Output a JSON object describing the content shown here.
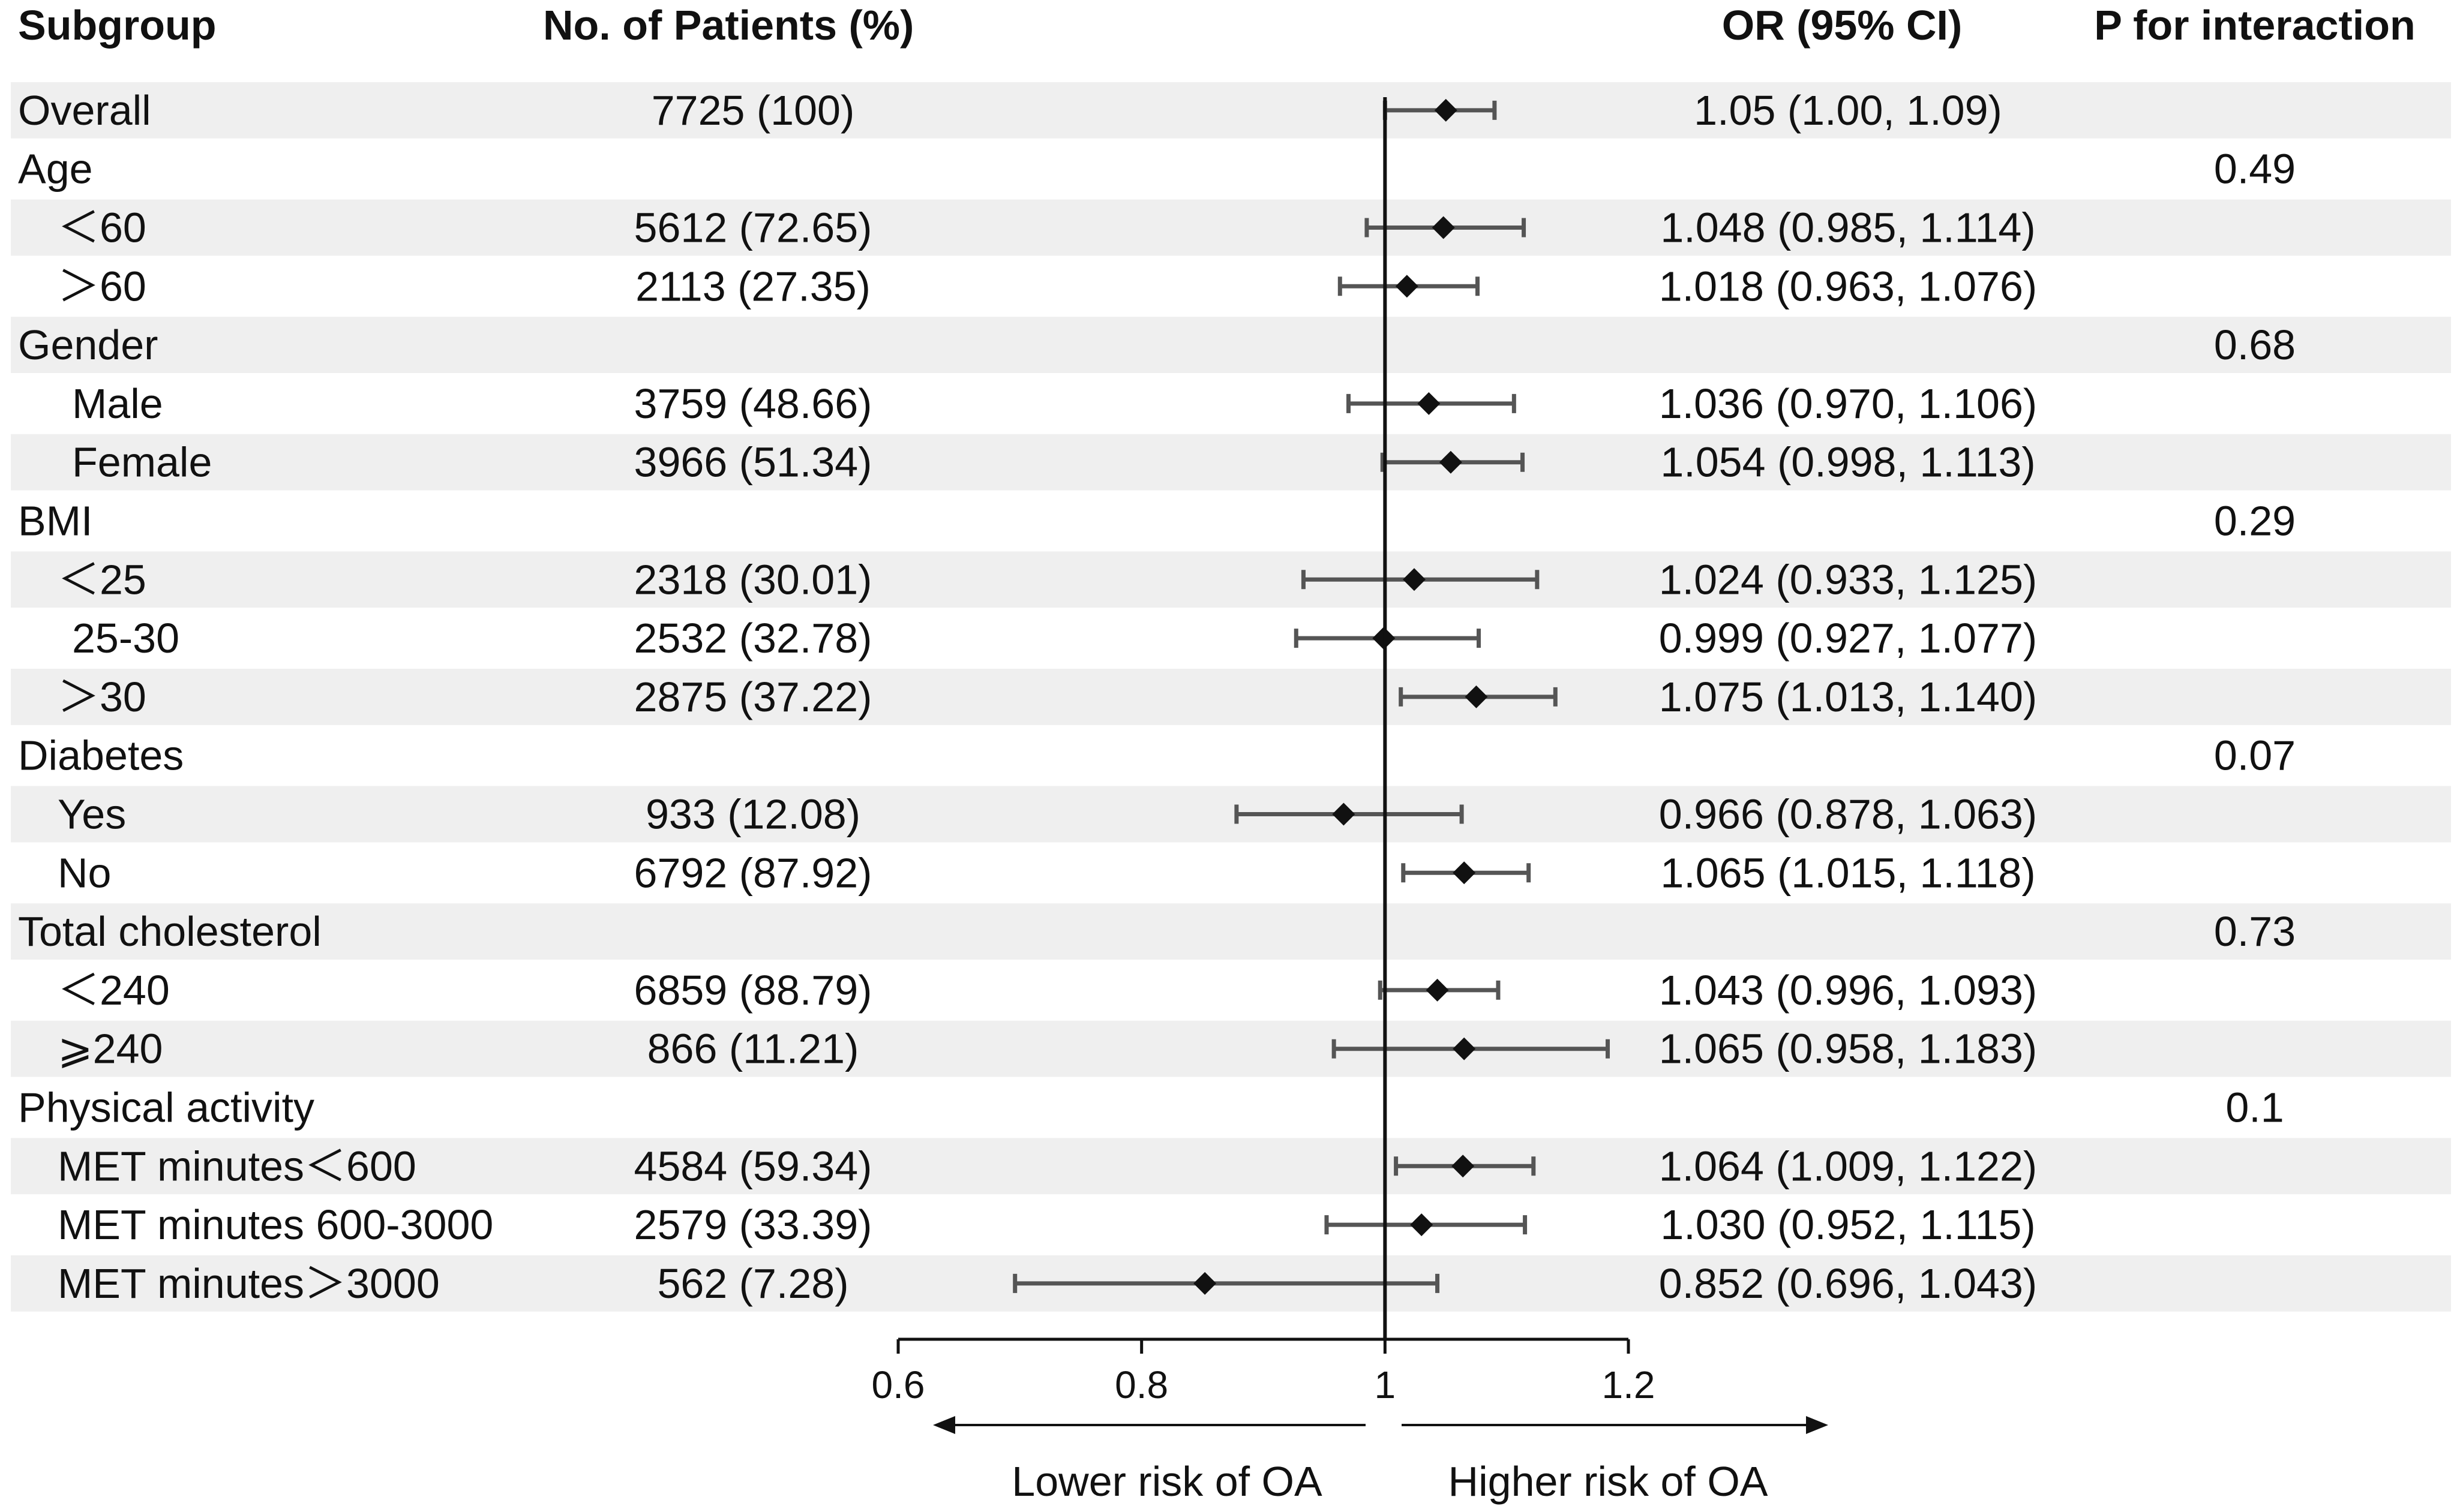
{
  "chart_data": {
    "type": "forest",
    "title": "",
    "columns": {
      "subgroup": "Subgroup",
      "patients": "No. of Patients (%)",
      "or_ci": "OR (95% CI)",
      "p_interaction": "P for interaction"
    },
    "xaxis": {
      "ticks": [
        0.6,
        0.8,
        1,
        1.2
      ],
      "tick_labels": [
        "0.6",
        "0.8",
        "1",
        "1.2"
      ],
      "range": [
        0.6,
        1.2
      ],
      "reference": 1,
      "left_label": "Lower risk of OA",
      "right_label": "Higher risk of OA"
    },
    "rows": [
      {
        "label": "Overall",
        "level": 0,
        "patients": "7725 (100)",
        "or": 1.05,
        "lo": 1.0,
        "hi": 1.09,
        "or_text": "1.05 (1.00, 1.09)",
        "p": "",
        "shaded": true
      },
      {
        "label": "Age",
        "level": 0,
        "patients": "",
        "or": null,
        "lo": null,
        "hi": null,
        "or_text": "",
        "p": "0.49",
        "shaded": false
      },
      {
        "label": "＜60",
        "level": 1,
        "patients": "5612 (72.65)",
        "or": 1.048,
        "lo": 0.985,
        "hi": 1.114,
        "or_text": "1.048 (0.985, 1.114)",
        "p": "",
        "shaded": true
      },
      {
        "label": "＞60",
        "level": 1,
        "patients": "2113 (27.35)",
        "or": 1.018,
        "lo": 0.963,
        "hi": 1.076,
        "or_text": "1.018 (0.963, 1.076)",
        "p": "",
        "shaded": false
      },
      {
        "label": "Gender",
        "level": 0,
        "patients": "",
        "or": null,
        "lo": null,
        "hi": null,
        "or_text": "",
        "p": "0.68",
        "shaded": true
      },
      {
        "label": "Male",
        "level": 2,
        "patients": "3759 (48.66)",
        "or": 1.036,
        "lo": 0.97,
        "hi": 1.106,
        "or_text": "1.036 (0.970, 1.106)",
        "p": "",
        "shaded": false
      },
      {
        "label": "Female",
        "level": 2,
        "patients": "3966 (51.34)",
        "or": 1.054,
        "lo": 0.998,
        "hi": 1.113,
        "or_text": "1.054 (0.998, 1.113)",
        "p": "",
        "shaded": true
      },
      {
        "label": "BMI",
        "level": 0,
        "patients": "",
        "or": null,
        "lo": null,
        "hi": null,
        "or_text": "",
        "p": "0.29",
        "shaded": false
      },
      {
        "label": "＜25",
        "level": 1,
        "patients": "2318 (30.01)",
        "or": 1.024,
        "lo": 0.933,
        "hi": 1.125,
        "or_text": "1.024 (0.933, 1.125)",
        "p": "",
        "shaded": true
      },
      {
        "label": "25-30",
        "level": 2,
        "patients": "2532 (32.78)",
        "or": 0.999,
        "lo": 0.927,
        "hi": 1.077,
        "or_text": "0.999 (0.927, 1.077)",
        "p": "",
        "shaded": false
      },
      {
        "label": "＞30",
        "level": 1,
        "patients": "2875 (37.22)",
        "or": 1.075,
        "lo": 1.013,
        "hi": 1.14,
        "or_text": "1.075 (1.013, 1.140)",
        "p": "",
        "shaded": true
      },
      {
        "label": "Diabetes",
        "level": 0,
        "patients": "",
        "or": null,
        "lo": null,
        "hi": null,
        "or_text": "",
        "p": "0.07",
        "shaded": false
      },
      {
        "label": "Yes",
        "level": 1,
        "patients": "933 (12.08)",
        "or": 0.966,
        "lo": 0.878,
        "hi": 1.063,
        "or_text": "0.966 (0.878, 1.063)",
        "p": "",
        "shaded": true
      },
      {
        "label": "No",
        "level": 1,
        "patients": "6792 (87.92)",
        "or": 1.065,
        "lo": 1.015,
        "hi": 1.118,
        "or_text": "1.065 (1.015, 1.118)",
        "p": "",
        "shaded": false
      },
      {
        "label": "Total cholesterol",
        "level": 0,
        "patients": "",
        "or": null,
        "lo": null,
        "hi": null,
        "or_text": "",
        "p": "0.73",
        "shaded": true
      },
      {
        "label": "＜240",
        "level": 1,
        "patients": "6859 (88.79)",
        "or": 1.043,
        "lo": 0.996,
        "hi": 1.093,
        "or_text": "1.043 (0.996, 1.093)",
        "p": "",
        "shaded": false
      },
      {
        "label": "⩾240",
        "level": 1,
        "patients": "866 (11.21)",
        "or": 1.065,
        "lo": 0.958,
        "hi": 1.183,
        "or_text": "1.065 (0.958, 1.183)",
        "p": "",
        "shaded": true
      },
      {
        "label": "Physical activity",
        "level": 0,
        "patients": "",
        "or": null,
        "lo": null,
        "hi": null,
        "or_text": "",
        "p": "0.1",
        "shaded": false
      },
      {
        "label": "MET minutes＜600",
        "level": 1,
        "patients": "4584 (59.34)",
        "or": 1.064,
        "lo": 1.009,
        "hi": 1.122,
        "or_text": "1.064 (1.009, 1.122)",
        "p": "",
        "shaded": true
      },
      {
        "label": "MET minutes 600-3000",
        "level": 1,
        "patients": "2579 (33.39)",
        "or": 1.03,
        "lo": 0.952,
        "hi": 1.115,
        "or_text": "1.030 (0.952, 1.115)",
        "p": "",
        "shaded": false
      },
      {
        "label": "MET minutes＞3000",
        "level": 1,
        "patients": "562 (7.28)",
        "or": 0.852,
        "lo": 0.696,
        "hi": 1.043,
        "or_text": "0.852 (0.696, 1.043)",
        "p": "",
        "shaded": true
      }
    ]
  },
  "colors": {
    "row_shade": "#efefef",
    "marker": "#111111",
    "ci_line": "#555555",
    "axis": "#111111",
    "text": "#111111"
  }
}
